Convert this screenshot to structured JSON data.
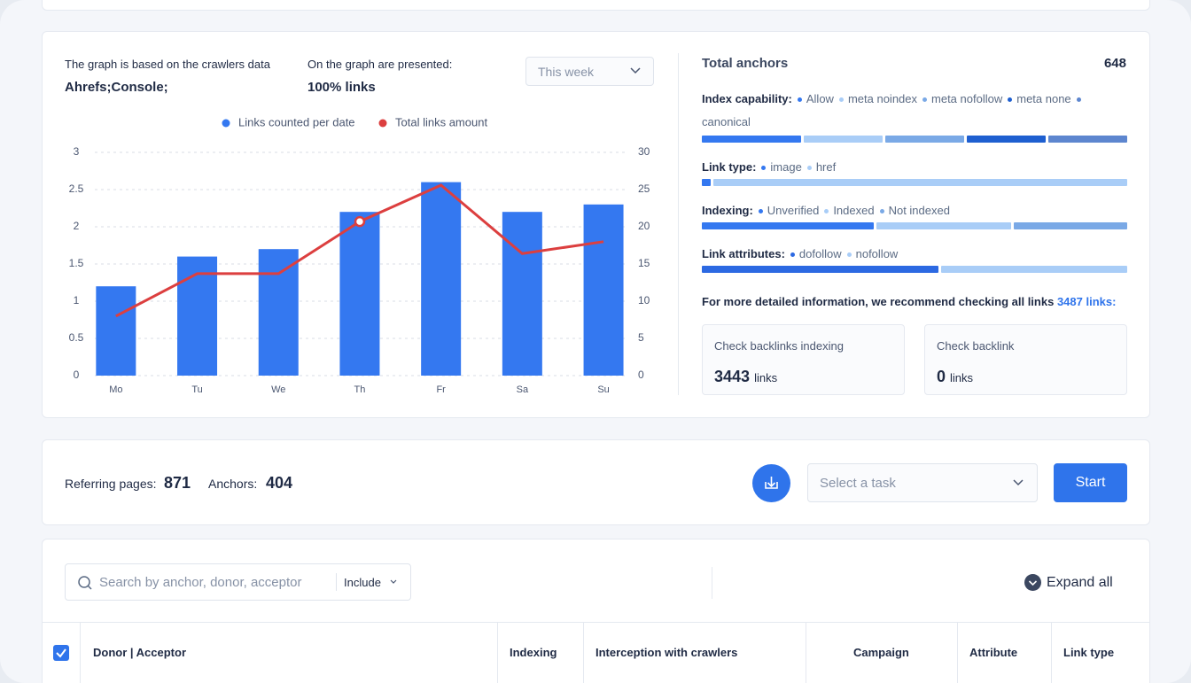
{
  "info": {
    "crawlers_label": "The graph is based on the crawlers data",
    "crawlers_value": "Ahrefs;Console;",
    "presented_label": "On the graph are presented:",
    "presented_value": "100% links",
    "period": "This week"
  },
  "chart_data": {
    "type": "combo",
    "categories": [
      "Mo",
      "Tu",
      "We",
      "Th",
      "Fr",
      "Sa",
      "Su"
    ],
    "series": [
      {
        "name": "Links counted per date",
        "type": "bar",
        "color": "#3478f0",
        "values": [
          1.2,
          1.6,
          1.7,
          2.2,
          2.6,
          2.2,
          2.3
        ]
      },
      {
        "name": "Total links amount",
        "type": "line",
        "axis": "y2",
        "color": "#dc3f3f",
        "values": [
          8,
          13.7,
          13.7,
          20.7,
          25.6,
          16.4,
          18
        ]
      }
    ],
    "ylim": [
      0,
      3
    ],
    "yticks": [
      0,
      0.5,
      1,
      1.5,
      2,
      2.5,
      3
    ],
    "y2lim": [
      0,
      30
    ],
    "y2ticks": [
      0,
      5,
      10,
      15,
      20,
      25,
      30
    ],
    "grid": true
  },
  "anchors": {
    "title": "Total anchors",
    "total": 648,
    "groups": [
      {
        "label": "Index capability:",
        "items": [
          {
            "name": "Allow",
            "color": "#3478f0",
            "share": 24
          },
          {
            "name": "meta noindex",
            "color": "#a9cdf7",
            "share": 19
          },
          {
            "name": "meta nofollow",
            "color": "#7aa9e6",
            "share": 19
          },
          {
            "name": "meta none",
            "color": "#1e5fd0",
            "share": 19
          },
          {
            "name": "canonical",
            "color": "#5d86cf",
            "share": 19
          }
        ]
      },
      {
        "label": "Link type:",
        "items": [
          {
            "name": "image",
            "color": "#3478f0",
            "share": 2
          },
          {
            "name": "href",
            "color": "#a9cdf7",
            "share": 98
          }
        ]
      },
      {
        "label": "Indexing:",
        "items": [
          {
            "name": "Unverified",
            "color": "#3478f0",
            "share": 41
          },
          {
            "name": "Indexed",
            "color": "#a9cdf7",
            "share": 32
          },
          {
            "name": "Not indexed",
            "color": "#7aa9e6",
            "share": 27
          }
        ]
      },
      {
        "label": "Link attributes:",
        "items": [
          {
            "name": "dofollow",
            "color": "#2c69e2",
            "share": 56
          },
          {
            "name": "nofollow",
            "color": "#a9cdf7",
            "share": 44
          }
        ]
      }
    ],
    "note": "For more detailed information, we recommend checking all links",
    "note_link": "3487 links:",
    "cards": [
      {
        "title": "Check backlinks indexing",
        "value": 3443,
        "unit": "links"
      },
      {
        "title": "Check backlink",
        "value": 0,
        "unit": "links"
      }
    ]
  },
  "toolbar": {
    "referring_label": "Referring pages:",
    "referring": 871,
    "anchors_label": "Anchors:",
    "anchors": 404,
    "task_placeholder": "Select a task",
    "start": "Start"
  },
  "table": {
    "search_placeholder": "Search by anchor, donor, acceptor",
    "filter": "Include",
    "expand": "Expand all",
    "columns": [
      "Donor | Acceptor",
      "Indexing",
      "Interception with crawlers",
      "Campaign",
      "Attribute",
      "Link type"
    ]
  }
}
